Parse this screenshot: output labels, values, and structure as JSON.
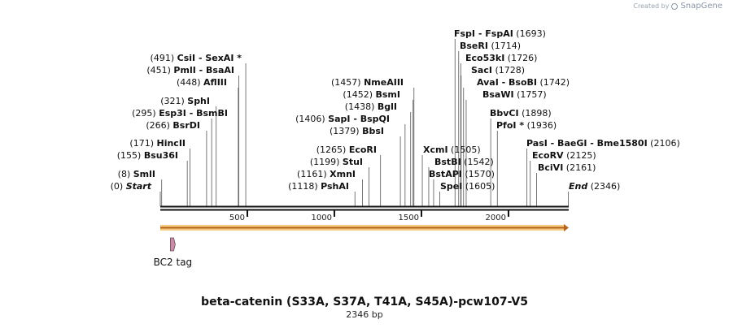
{
  "brand": {
    "prefix": "Created by",
    "name": "SnapGene"
  },
  "plasmid": {
    "title": "beta-catenin (S33A, S37A, T41A, S45A)-pcw107-V5",
    "length_label": "2346 bp",
    "length": 2346
  },
  "ruler_ticks": [
    {
      "value": 500,
      "label": "500"
    },
    {
      "value": 1000,
      "label": "1000"
    },
    {
      "value": 1500,
      "label": "1500"
    },
    {
      "value": 2000,
      "label": "2000"
    }
  ],
  "left_sites": [
    {
      "name": "Start",
      "pos": "(0)",
      "position": 0,
      "style": "italic"
    },
    {
      "name": "SmlI",
      "pos": "(8)",
      "position": 8
    },
    {
      "name": "Bsu36I",
      "pos": "(155)",
      "position": 155
    },
    {
      "name": "HincII",
      "pos": "(171)",
      "position": 171
    },
    {
      "name": "BsrDI",
      "pos": "(266)",
      "position": 266
    },
    {
      "name": "Esp3I  -  BsmBI",
      "pos": "(295)",
      "position": 295
    },
    {
      "name": "SphI",
      "pos": "(321)",
      "position": 321
    },
    {
      "name": "AflIII",
      "pos": "(448)",
      "position": 448
    },
    {
      "name": "PmlI  -  BsaAI",
      "pos": "(451)",
      "position": 451
    },
    {
      "name": "CsiI  -  SexAI *",
      "pos": "(491)",
      "position": 491
    }
  ],
  "mid_sites": [
    {
      "name": "PshAI",
      "pos": "(1118)",
      "position": 1118
    },
    {
      "name": "XmnI",
      "pos": "(1161)",
      "position": 1161
    },
    {
      "name": "StuI",
      "pos": "(1199)",
      "position": 1199
    },
    {
      "name": "EcoRI",
      "pos": "(1265)",
      "position": 1265
    },
    {
      "name": "BbsI",
      "pos": "(1379)",
      "position": 1379
    },
    {
      "name": "SapI  -  BspQI",
      "pos": "(1406)",
      "position": 1406
    },
    {
      "name": "BglI",
      "pos": "(1438)",
      "position": 1438
    },
    {
      "name": "BsmI",
      "pos": "(1452)",
      "position": 1452
    },
    {
      "name": "NmeAIII",
      "pos": "(1457)",
      "position": 1457
    }
  ],
  "right_sites": [
    {
      "name": "SpeI",
      "pos": "(1605)",
      "position": 1605
    },
    {
      "name": "BstAPI",
      "pos": "(1570)",
      "position": 1570
    },
    {
      "name": "BstBI",
      "pos": "(1542)",
      "position": 1542
    },
    {
      "name": "XcmI",
      "pos": "(1505)",
      "position": 1505
    },
    {
      "name": "PfoI *",
      "pos": "(1936)",
      "position": 1936
    },
    {
      "name": "BbvCI",
      "pos": "(1898)",
      "position": 1898
    },
    {
      "name": "BsaWI",
      "pos": "(1757)",
      "position": 1757
    },
    {
      "name": "AvaI  -  BsoBI",
      "pos": "(1742)",
      "position": 1742
    },
    {
      "name": "SacI",
      "pos": "(1728)",
      "position": 1728
    },
    {
      "name": "Eco53kI",
      "pos": "(1726)",
      "position": 1726
    },
    {
      "name": "BseRI",
      "pos": "(1714)",
      "position": 1714
    },
    {
      "name": "FspI  -  FspAI",
      "pos": "(1693)",
      "position": 1693
    },
    {
      "name": "End",
      "pos": "(2346)",
      "position": 2346,
      "style": "italic"
    },
    {
      "name": "BciVI",
      "pos": "(2161)",
      "position": 2161
    },
    {
      "name": "EcoRV",
      "pos": "(2125)",
      "position": 2125
    },
    {
      "name": "PasI  -  BaeGI  -  Bme1580I",
      "pos": "(2106)",
      "position": 2106
    }
  ],
  "features": [
    {
      "name": "BC2 tag",
      "type": "tag",
      "start": 58,
      "end": 84,
      "color": "#c98fa8"
    }
  ],
  "orf": {
    "start": 0,
    "end": 2346,
    "color": "#f4c26a",
    "arrow_color": "#b5651d"
  }
}
